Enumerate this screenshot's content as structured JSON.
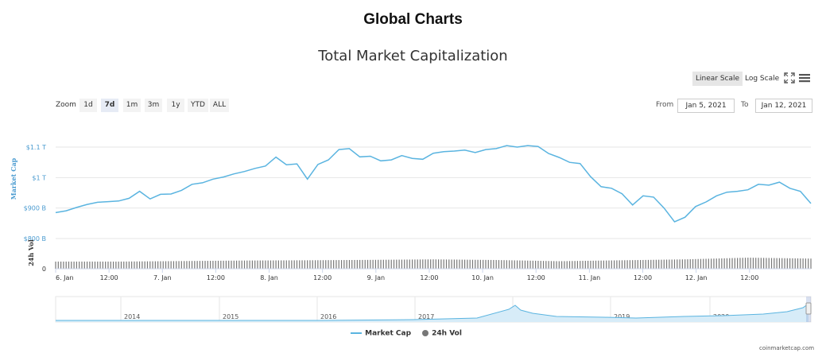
{
  "page": {
    "heading": "Global Charts",
    "credits": "coinmarketcap.com"
  },
  "controls": {
    "linear_scale": "Linear Scale",
    "log_scale": "Log Scale",
    "zoom_label": "Zoom",
    "zoom_buttons": [
      "1d",
      "7d",
      "1m",
      "3m",
      "1y",
      "YTD",
      "ALL"
    ],
    "zoom_selected": "7d",
    "from_label": "From",
    "from_value": "Jan 5, 2021",
    "to_label": "To",
    "to_value": "Jan 12, 2021",
    "fullscreen_icon": "fullscreen-icon",
    "menu_icon": "hamburger-menu-icon"
  },
  "colors": {
    "market_cap": "#5ab4e0",
    "volume": "#777777",
    "grid": "#e6e6e6",
    "axis_label": "#4a9bd0",
    "navigator_fill": "#d7ecf8"
  },
  "chart_data": {
    "type": "line",
    "title": "Total Market Capitalization",
    "grid": true,
    "legend_position": "bottom-center",
    "x_ticks": [
      "6. Jan",
      "12:00",
      "7. Jan",
      "12:00",
      "8. Jan",
      "12:00",
      "9. Jan",
      "12:00",
      "10. Jan",
      "12:00",
      "11. Jan",
      "12:00",
      "12. Jan",
      "12:00"
    ],
    "x_range_hours": [
      0,
      144
    ],
    "market_cap_axis": {
      "label": "Market Cap",
      "ticks": [
        "$1.1 T",
        "$1 T",
        "$900 B",
        "$800 B"
      ],
      "range_billion": [
        800,
        1100
      ]
    },
    "volume_axis": {
      "label": "24h Vol",
      "ticks": [
        "0"
      ]
    },
    "series": [
      {
        "name": "Market Cap",
        "unit": "USD billions",
        "hours": [
          0,
          2,
          4,
          6,
          8,
          10,
          12,
          14,
          16,
          18,
          20,
          22,
          24,
          26,
          28,
          30,
          32,
          34,
          36,
          38,
          40,
          42,
          44,
          46,
          48,
          50,
          52,
          54,
          56,
          58,
          60,
          62,
          64,
          66,
          68,
          70,
          72,
          74,
          76,
          78,
          80,
          82,
          84,
          86,
          88,
          90,
          92,
          94,
          96,
          98,
          100,
          102,
          104,
          106,
          108,
          110,
          112,
          114,
          116,
          118,
          120,
          122,
          124,
          126,
          128,
          130,
          132,
          134,
          136,
          138,
          140,
          142,
          144
        ],
        "values": [
          885,
          891,
          902,
          912,
          919,
          921,
          923,
          932,
          955,
          930,
          945,
          946,
          958,
          978,
          983,
          995,
          1002,
          1012,
          1020,
          1030,
          1038,
          1067,
          1042,
          1045,
          995,
          1043,
          1058,
          1092,
          1095,
          1068,
          1070,
          1055,
          1058,
          1072,
          1063,
          1060,
          1080,
          1085,
          1087,
          1090,
          1082,
          1092,
          1095,
          1105,
          1100,
          1105,
          1102,
          1079,
          1066,
          1050,
          1046,
          1003,
          970,
          965,
          947,
          910,
          940,
          936,
          900,
          855,
          870,
          905,
          920,
          940,
          952,
          955,
          960,
          978,
          975,
          985,
          965,
          955,
          915
        ]
      },
      {
        "name": "24h Vol",
        "unit": "relative",
        "hours": [
          0,
          12,
          24,
          36,
          48,
          60,
          72,
          84,
          96,
          108,
          120,
          132,
          144
        ],
        "values": [
          0.55,
          0.55,
          0.59,
          0.63,
          0.65,
          0.68,
          0.72,
          0.67,
          0.58,
          0.65,
          0.72,
          0.85,
          0.78
        ]
      }
    ],
    "navigator": {
      "x_ticks": [
        "2014",
        "2015",
        "2016",
        "2017",
        "2018",
        "2019",
        "2020"
      ]
    }
  },
  "legend": {
    "market_cap": "Market Cap",
    "volume": "24h Vol"
  }
}
